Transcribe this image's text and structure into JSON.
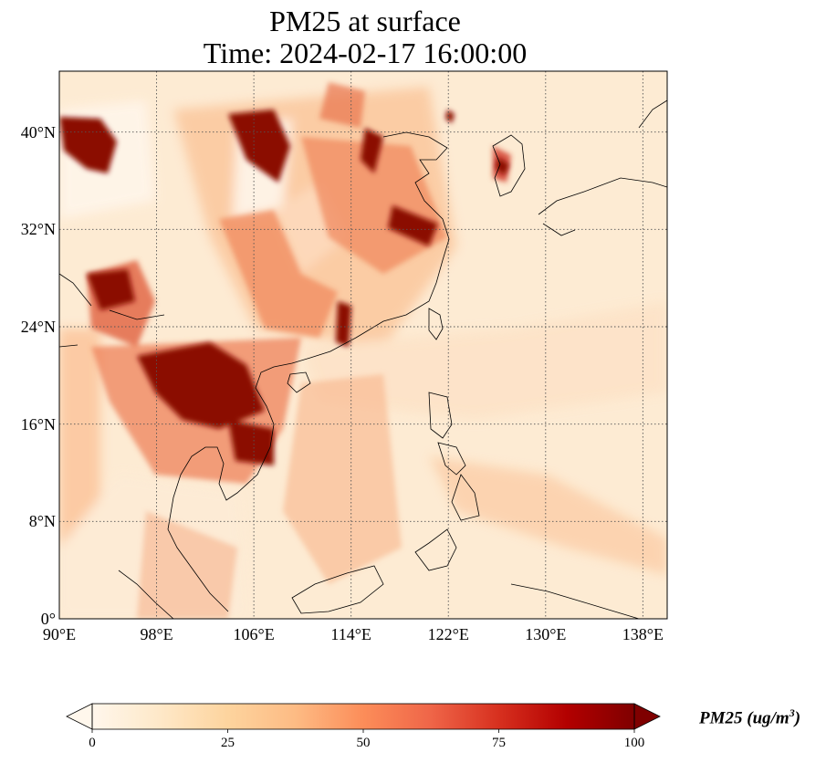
{
  "title": {
    "line1": "PM25 at surface",
    "line2": "Time: 2024-02-17 16:00:00"
  },
  "map": {
    "variable": "PM25",
    "projection": "PlateCarree",
    "lon_range": [
      90,
      140
    ],
    "lat_range": [
      0,
      45
    ],
    "gridlines": "dotted",
    "lat_ticks": [
      {
        "value": 0,
        "label": "0°"
      },
      {
        "value": 8,
        "label": "8°N"
      },
      {
        "value": 16,
        "label": "16°N"
      },
      {
        "value": 24,
        "label": "24°N"
      },
      {
        "value": 32,
        "label": "32°N"
      },
      {
        "value": 40,
        "label": "40°N"
      }
    ],
    "lon_ticks": [
      {
        "value": 90,
        "label": "90°E"
      },
      {
        "value": 98,
        "label": "98°E"
      },
      {
        "value": 106,
        "label": "106°E"
      },
      {
        "value": 114,
        "label": "114°E"
      },
      {
        "value": 122,
        "label": "122°E"
      },
      {
        "value": 130,
        "label": "130°E"
      },
      {
        "value": 138,
        "label": "138°E"
      }
    ]
  },
  "colorbar": {
    "label": "PM25 (ug/m$^3$)",
    "label_display": "PM25 (ug/m",
    "label_exponent": "3",
    "label_close": ")",
    "colormap": "OrRd",
    "range": [
      0,
      100
    ],
    "extend": "both",
    "ticks": [
      {
        "value": 0,
        "label": "0"
      },
      {
        "value": 25,
        "label": "25"
      },
      {
        "value": 50,
        "label": "50"
      },
      {
        "value": 75,
        "label": "75"
      },
      {
        "value": 100,
        "label": "100"
      }
    ],
    "colors": [
      "#fff7ec",
      "#fee8c8",
      "#fdd49e",
      "#fdbb84",
      "#fc8d59",
      "#ef6548",
      "#d7301f",
      "#b30000",
      "#7f0000"
    ]
  }
}
